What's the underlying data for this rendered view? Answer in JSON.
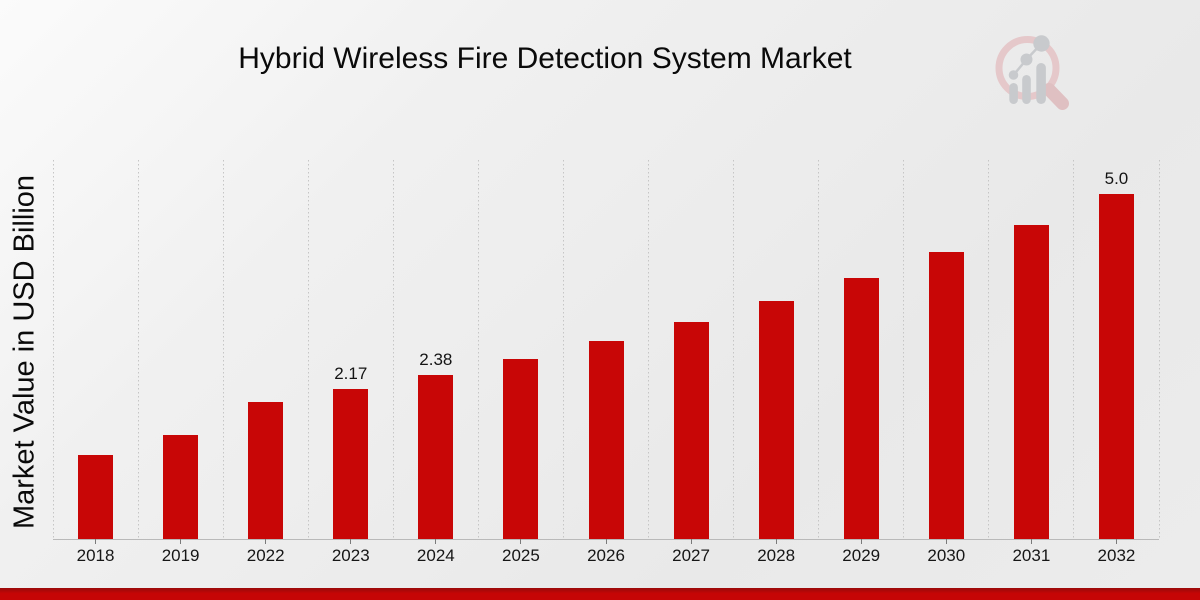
{
  "chart_data": {
    "type": "bar",
    "title": "Hybrid Wireless Fire Detection System Market",
    "ylabel": "Market Value in USD Billion",
    "xlabel": "",
    "categories": [
      "2018",
      "2019",
      "2022",
      "2023",
      "2024",
      "2025",
      "2026",
      "2027",
      "2028",
      "2029",
      "2030",
      "2031",
      "2032"
    ],
    "values": [
      1.21,
      1.51,
      1.98,
      2.17,
      2.38,
      2.61,
      2.86,
      3.14,
      3.45,
      3.78,
      4.15,
      4.55,
      5.0
    ],
    "value_labels": [
      "",
      "",
      "",
      "2.17",
      "2.38",
      "",
      "",
      "",
      "",
      "",
      "",
      "",
      "5.0"
    ],
    "ylim": [
      0,
      5.5
    ],
    "bar_color": "#c80606",
    "grid": "vertical-dotted",
    "gridline_color": "#c5c5c5",
    "axis_color": "#b9b9b9",
    "tick_color": "#7a7a7a",
    "legend": "none"
  },
  "footer": {
    "accent_bar_color": "#c60505"
  },
  "logo": {
    "name": "magnifier-bar-chart-logo",
    "ring_color": "#e5c7c9",
    "handle_color": "#dfbec0",
    "bars_color": "#c7c9cc"
  }
}
